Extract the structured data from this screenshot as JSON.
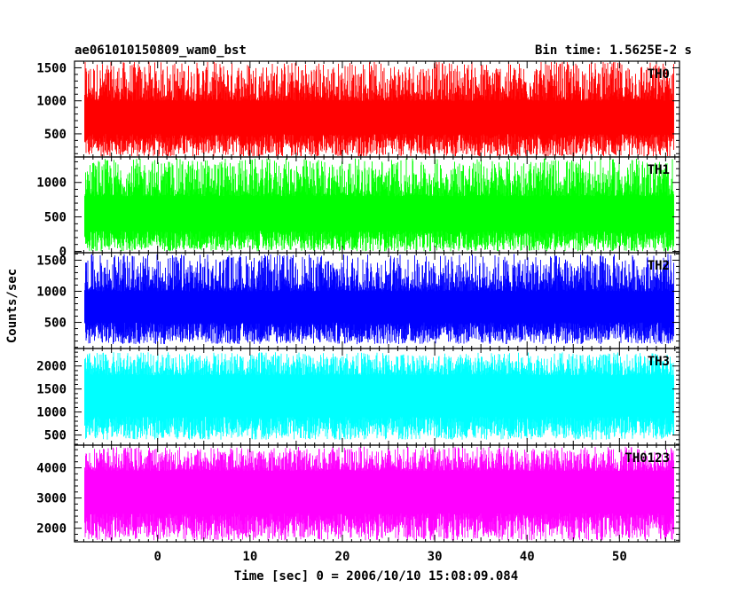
{
  "chart_data": {
    "type": "line",
    "title_left": "ae061010150809_wam0_bst",
    "title_right": "Bin time: 1.5625E-2 s",
    "xlabel": "Time [sec] 0 = 2006/10/10 15:08:09.084",
    "ylabel": "Counts/sec",
    "xlim": [
      -9,
      56.5
    ],
    "x_data_range": [
      -7.9,
      55.9
    ],
    "x_ticks": [
      0,
      10,
      20,
      30,
      40,
      50
    ],
    "x_tick_labels": [
      "0",
      "10",
      "20",
      "30",
      "40",
      "50"
    ],
    "grid": false,
    "panels": [
      {
        "name": "TH0",
        "color": "#ff0000",
        "ylim": [
          150,
          1600
        ],
        "y_ticks": [
          500,
          1000,
          1500
        ],
        "y_tick_labels": [
          "500",
          "1000",
          "1500"
        ],
        "mean": 700,
        "low_range": [
          150,
          500
        ],
        "high_range": [
          1000,
          1600
        ]
      },
      {
        "name": "TH1",
        "color": "#00ff00",
        "ylim": [
          -20,
          1370
        ],
        "y_ticks": [
          0,
          500,
          1000
        ],
        "y_tick_labels": [
          "0",
          "500",
          "1000"
        ],
        "mean": 520,
        "low_range": [
          0,
          300
        ],
        "high_range": [
          800,
          1350
        ]
      },
      {
        "name": "TH2",
        "color": "#0000ff",
        "ylim": [
          80,
          1620
        ],
        "y_ticks": [
          500,
          1000,
          1500
        ],
        "y_tick_labels": [
          "500",
          "1000",
          "1500"
        ],
        "mean": 700,
        "low_range": [
          150,
          500
        ],
        "high_range": [
          1000,
          1600
        ]
      },
      {
        "name": "TH3",
        "color": "#00ffff",
        "ylim": [
          280,
          2380
        ],
        "y_ticks": [
          500,
          1000,
          1500,
          2000
        ],
        "y_tick_labels": [
          "500",
          "1000",
          "1500",
          "2000"
        ],
        "mean": 1350,
        "low_range": [
          400,
          900
        ],
        "high_range": [
          1800,
          2300
        ]
      },
      {
        "name": "TH0123",
        "color": "#ff00ff",
        "ylim": [
          1550,
          4750
        ],
        "y_ticks": [
          2000,
          3000,
          4000
        ],
        "y_tick_labels": [
          "2000",
          "3000",
          "4000"
        ],
        "mean": 3100,
        "low_range": [
          1600,
          2500
        ],
        "high_range": [
          3900,
          4700
        ]
      }
    ]
  }
}
